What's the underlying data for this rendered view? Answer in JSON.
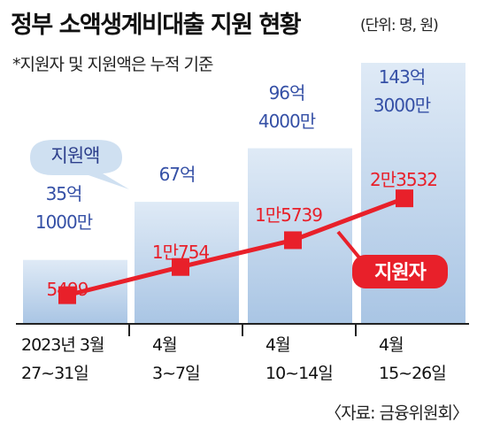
{
  "header": {
    "title": "정부 소액생계비대출 지원 현황",
    "unit": "(단위: 명, 원)",
    "note": "*지원자 및 지원액은 누적 기준"
  },
  "source": "〈자료: 금융위원회〉",
  "chart_data": {
    "type": "bar+line",
    "categories": [
      [
        "2023년 3월",
        "27~31일"
      ],
      [
        "4월",
        "3~7일"
      ],
      [
        "4월",
        "10~14일"
      ],
      [
        "4월",
        "15~26일"
      ]
    ],
    "series": [
      {
        "name": "지원액",
        "type": "bar",
        "values": [
          3510000000,
          6700000000,
          9640000000,
          14330000000
        ],
        "labels": [
          [
            "35억",
            "1000만"
          ],
          [
            "67억"
          ],
          [
            "96억",
            "4000만"
          ],
          [
            "143억",
            "3000만"
          ]
        ],
        "color": "#c6d9ee"
      },
      {
        "name": "지원자",
        "type": "line",
        "values": [
          5499,
          10754,
          15739,
          23532
        ],
        "labels": [
          "5499",
          "1만754",
          "1만5739",
          "2만3532"
        ],
        "color": "#e8202a"
      }
    ]
  },
  "colors": {
    "bar_top": "#dce8f5",
    "bar_bottom": "#aec8e5",
    "line": "#e8202a",
    "bar_text": "#3550a6",
    "callout_bg": "#cfe0f1"
  }
}
